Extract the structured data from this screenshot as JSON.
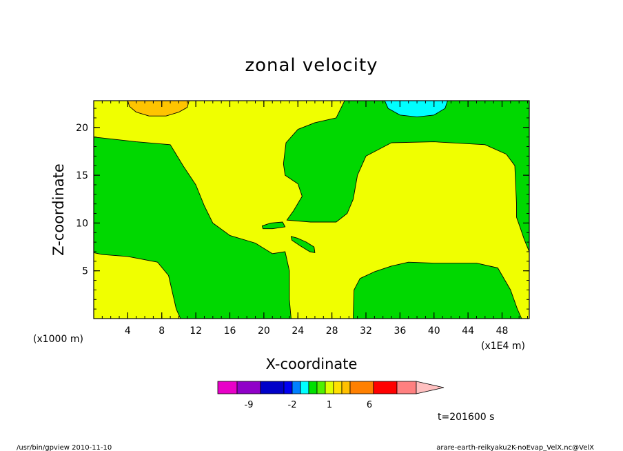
{
  "chart_data": {
    "type": "heatmap",
    "title": "zonal velocity",
    "xlabel": "X-coordinate",
    "ylabel": "Z-coordinate",
    "x_unit_left": "(x1000 m)",
    "x_unit_right": "(x1E4 m)",
    "xlim": [
      0,
      51.2
    ],
    "ylim": [
      0,
      22.8
    ],
    "xticks": [
      4,
      8,
      12,
      16,
      20,
      24,
      28,
      32,
      36,
      40,
      44,
      48
    ],
    "yticks": [
      5,
      10,
      15,
      20
    ],
    "contour_regions": [
      {
        "level": "yellow",
        "value_range": [
          1,
          2
        ],
        "role": "background"
      },
      {
        "level": "green",
        "value_range": [
          0,
          1
        ],
        "region": "left-middle",
        "polygon": [
          [
            0,
            19
          ],
          [
            5,
            18.5
          ],
          [
            9,
            18.2
          ],
          [
            10.5,
            16
          ],
          [
            12,
            14
          ],
          [
            13,
            11.8
          ],
          [
            14,
            10
          ],
          [
            16,
            8.7
          ],
          [
            19,
            7.9
          ],
          [
            21,
            6.8
          ],
          [
            22.5,
            7
          ],
          [
            23,
            5
          ],
          [
            23,
            2
          ],
          [
            23.2,
            0
          ],
          [
            10.2,
            0
          ],
          [
            9.7,
            1
          ],
          [
            8.8,
            4.5
          ],
          [
            7.5,
            5.9
          ],
          [
            4,
            6.5
          ],
          [
            1,
            6.7
          ],
          [
            0,
            6.9
          ]
        ]
      },
      {
        "level": "green",
        "value_range": [
          0,
          1
        ],
        "region": "top-right",
        "polygon": [
          [
            29.5,
            22.8
          ],
          [
            28.5,
            21
          ],
          [
            26,
            20.5
          ],
          [
            24,
            19.8
          ],
          [
            22.6,
            18.4
          ],
          [
            22.3,
            16.2
          ],
          [
            22.5,
            15
          ],
          [
            24,
            14.1
          ],
          [
            24.5,
            12.8
          ],
          [
            23.5,
            11.3
          ],
          [
            22.7,
            10.3
          ],
          [
            25.5,
            10.1
          ],
          [
            28.5,
            10.1
          ],
          [
            29.8,
            11
          ],
          [
            30.5,
            12.5
          ],
          [
            31,
            15
          ],
          [
            32,
            17
          ],
          [
            35,
            18.4
          ],
          [
            40,
            18.5
          ],
          [
            46,
            18.2
          ],
          [
            48.5,
            17.2
          ],
          [
            49.5,
            16
          ],
          [
            49.7,
            12
          ],
          [
            49.7,
            10.6
          ],
          [
            50.1,
            9.6
          ],
          [
            50.6,
            8.3
          ],
          [
            51.2,
            7
          ],
          [
            51.2,
            22.8
          ]
        ]
      },
      {
        "level": "green",
        "value_range": [
          0,
          1
        ],
        "region": "bottom-right",
        "polygon": [
          [
            30.5,
            0
          ],
          [
            30.6,
            3
          ],
          [
            31.3,
            4.2
          ],
          [
            33,
            4.9
          ],
          [
            35,
            5.5
          ],
          [
            37,
            5.9
          ],
          [
            40,
            5.8
          ],
          [
            45,
            5.8
          ],
          [
            47.5,
            5.3
          ],
          [
            49,
            3
          ],
          [
            49.8,
            1
          ],
          [
            50.3,
            0
          ]
        ]
      },
      {
        "level": "green",
        "value_range": [
          0,
          1
        ],
        "region": "small-blob-center",
        "polygon": [
          [
            19.8,
            9.7
          ],
          [
            20.8,
            10
          ],
          [
            22.2,
            10.1
          ],
          [
            22.5,
            9.6
          ],
          [
            21,
            9.4
          ],
          [
            19.9,
            9.4
          ]
        ]
      },
      {
        "level": "green",
        "value_range": [
          0,
          1
        ],
        "region": "small-blob-diagonal",
        "polygon": [
          [
            23.2,
            8.6
          ],
          [
            24,
            8.4
          ],
          [
            25,
            8
          ],
          [
            25.9,
            7.5
          ],
          [
            26,
            6.9
          ],
          [
            25.4,
            7
          ],
          [
            24.3,
            7.6
          ],
          [
            23.3,
            8.2
          ]
        ]
      },
      {
        "level": "orange",
        "value_range": [
          2,
          3
        ],
        "region": "top-left-cell",
        "polygon": [
          [
            4,
            22.8
          ],
          [
            4.2,
            22.2
          ],
          [
            5,
            21.6
          ],
          [
            6.5,
            21.2
          ],
          [
            8.5,
            21.2
          ],
          [
            10,
            21.6
          ],
          [
            11,
            22.1
          ],
          [
            11.2,
            22.8
          ]
        ]
      },
      {
        "level": "cyan",
        "value_range": [
          -1,
          0
        ],
        "region": "top-right-cell",
        "polygon": [
          [
            34.2,
            22.8
          ],
          [
            34.6,
            22
          ],
          [
            36,
            21.3
          ],
          [
            38,
            21.1
          ],
          [
            40,
            21.3
          ],
          [
            41.3,
            22
          ],
          [
            41.6,
            22.8
          ]
        ]
      }
    ],
    "colorbar": {
      "colors": [
        "#e800c8",
        "#9000c8",
        "#0000c8",
        "#0000f0",
        "#0080ff",
        "#00ffff",
        "#00e000",
        "#50f000",
        "#e0ff00",
        "#ffe000",
        "#ffc000",
        "#ff8000",
        "#ff0000",
        "#ff8080",
        "#ffc0c0"
      ],
      "labels": [
        "-9",
        "-2",
        "1",
        "6"
      ]
    },
    "annotation": "t=201600 s"
  },
  "footer": {
    "left": "/usr/bin/gpview   2010-11-10",
    "right": "arare-earth-reikyaku2K-noEvap_VelX.nc@VelX"
  },
  "colors": {
    "yellow": "#f0ff00",
    "green": "#00d800",
    "orange": "#ffc400",
    "cyan": "#00ffff"
  }
}
